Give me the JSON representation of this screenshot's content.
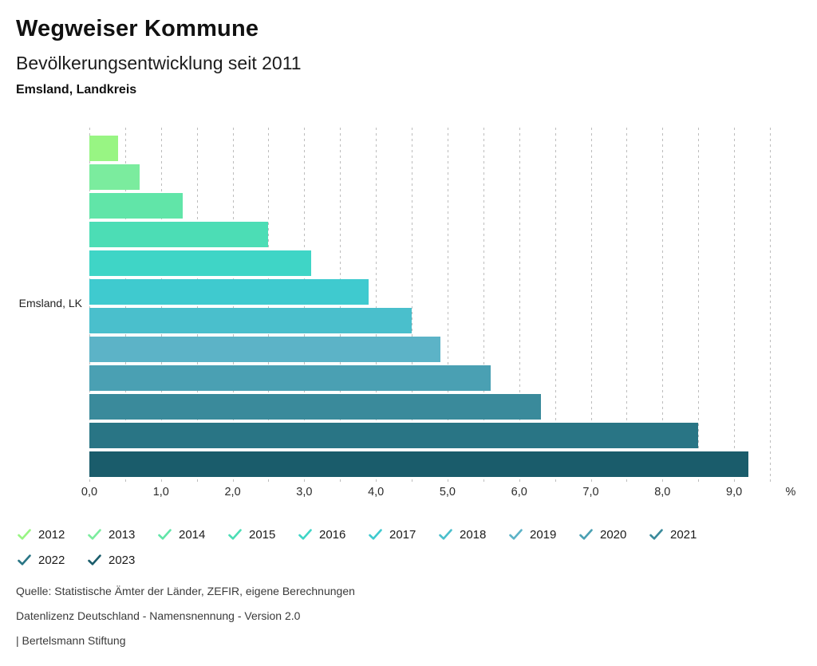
{
  "header": {
    "title": "Wegweiser Kommune",
    "subtitle": "Bevölkerungsentwicklung seit 2011",
    "region": "Emsland, Landkreis"
  },
  "chart_data": {
    "type": "bar",
    "orientation": "horizontal",
    "title": "Bevölkerungsentwicklung seit 2011",
    "row_label": "Emsland, LK",
    "categories": [
      "2012",
      "2013",
      "2014",
      "2015",
      "2016",
      "2017",
      "2018",
      "2019",
      "2020",
      "2021",
      "2022",
      "2023"
    ],
    "values": [
      0.4,
      0.7,
      1.3,
      2.5,
      3.1,
      3.9,
      4.5,
      4.9,
      5.6,
      6.3,
      8.5,
      9.2
    ],
    "colors": [
      "#98F583",
      "#7BEC9E",
      "#61E5A8",
      "#4CDDB5",
      "#3FD5C6",
      "#3FCACF",
      "#4ABFCC",
      "#5CB3C7",
      "#4AA0B3",
      "#3A8A9B",
      "#297585",
      "#1A5C6B"
    ],
    "unit": "%",
    "xlabel": "%",
    "xlim": [
      0,
      9.5
    ],
    "grid_step": 0.5,
    "tick_step": 1.0,
    "x_tick_labels": [
      "0,0",
      "1,0",
      "2,0",
      "3,0",
      "4,0",
      "5,0",
      "6,0",
      "7,0",
      "8,0",
      "9,0"
    ],
    "grid": "dashed-vertical",
    "gridline_color": "#bdbdbd",
    "legend_position": "bottom",
    "legend_icon": "check-icon"
  },
  "footer": {
    "source": "Quelle: Statistische Ämter der Länder, ZEFIR, eigene Berechnungen",
    "license": "Datenlizenz Deutschland - Namensnennung - Version 2.0",
    "attribution": "| Bertelsmann Stiftung"
  }
}
